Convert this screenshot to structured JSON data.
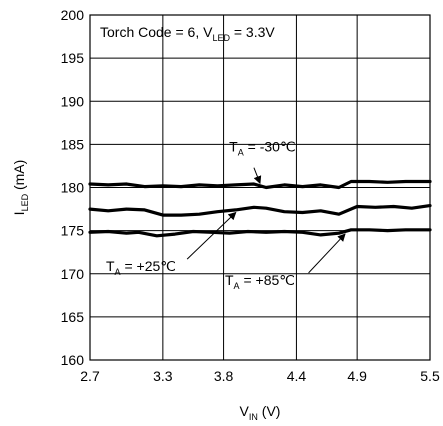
{
  "chart_data": {
    "type": "line",
    "title": "",
    "xlabel": {
      "main": "V",
      "sub": "IN",
      "unit": " (V)"
    },
    "ylabel": {
      "main": "I",
      "sub": "LED",
      "unit": " (mA)"
    },
    "xlim": [
      2.7,
      5.5
    ],
    "ylim": [
      160,
      200
    ],
    "x_ticks": [
      "2.7",
      "3.3",
      "3.8",
      "4.4",
      "4.9",
      "5.5"
    ],
    "y_ticks": [
      "160",
      "165",
      "170",
      "175",
      "180",
      "185",
      "190",
      "195",
      "200"
    ],
    "grid": true,
    "condition": {
      "prefix": "Torch Code = 6, V",
      "sub": "LED",
      "suffix": " = 3.3V"
    },
    "series": [
      {
        "name": "T_A = -30°C",
        "x": [
          2.7,
          2.85,
          3.0,
          3.15,
          3.3,
          3.45,
          3.6,
          3.75,
          3.9,
          4.05,
          4.15,
          4.3,
          4.45,
          4.6,
          4.75,
          4.85,
          5.0,
          5.15,
          5.3,
          5.5
        ],
        "y": [
          180.4,
          180.3,
          180.4,
          180.1,
          180.2,
          180.1,
          180.3,
          180.2,
          180.3,
          180.4,
          180.0,
          180.3,
          180.1,
          180.3,
          180.0,
          180.7,
          180.7,
          180.6,
          180.7,
          180.7
        ]
      },
      {
        "name": "T_A = +25°C",
        "x": [
          2.7,
          2.85,
          3.0,
          3.15,
          3.3,
          3.45,
          3.6,
          3.75,
          3.9,
          4.05,
          4.15,
          4.3,
          4.45,
          4.6,
          4.75,
          4.9,
          5.05,
          5.2,
          5.35,
          5.5
        ],
        "y": [
          177.5,
          177.3,
          177.5,
          177.4,
          176.8,
          176.8,
          176.9,
          177.2,
          177.4,
          177.7,
          177.6,
          177.2,
          177.1,
          177.3,
          176.9,
          177.8,
          177.7,
          177.8,
          177.6,
          177.9
        ]
      },
      {
        "name": "T_A = +85°C",
        "x": [
          2.7,
          2.85,
          3.0,
          3.1,
          3.25,
          3.4,
          3.55,
          3.7,
          3.85,
          4.0,
          4.15,
          4.3,
          4.45,
          4.6,
          4.75,
          4.85,
          5.0,
          5.15,
          5.3,
          5.5
        ],
        "y": [
          174.8,
          174.9,
          174.7,
          174.8,
          174.4,
          174.6,
          174.9,
          174.8,
          174.7,
          174.9,
          174.8,
          174.9,
          174.8,
          174.5,
          174.7,
          175.1,
          175.1,
          175.0,
          175.1,
          175.1
        ]
      }
    ],
    "annotations": [
      {
        "label": {
          "prefix": "T",
          "sub": "A",
          "suffix": " = -30℃"
        },
        "series": 0,
        "text_at": [
          4.12,
          184.2
        ],
        "arrow_from": [
          4.05,
          182.3
        ],
        "arrow_to": [
          4.1,
          180.5
        ]
      },
      {
        "label": {
          "prefix": "T",
          "sub": "A",
          "suffix": " = +25℃"
        },
        "series": 1,
        "text_at": [
          3.12,
          170.3
        ],
        "arrow_from": [
          3.5,
          171.7
        ],
        "arrow_to": [
          3.9,
          177.1
        ]
      },
      {
        "label": {
          "prefix": "T",
          "sub": "A",
          "suffix": " = +85℃"
        },
        "series": 2,
        "text_at": [
          4.1,
          168.7
        ],
        "arrow_from": [
          4.5,
          170.1
        ],
        "arrow_to": [
          4.8,
          174.6
        ]
      }
    ]
  }
}
